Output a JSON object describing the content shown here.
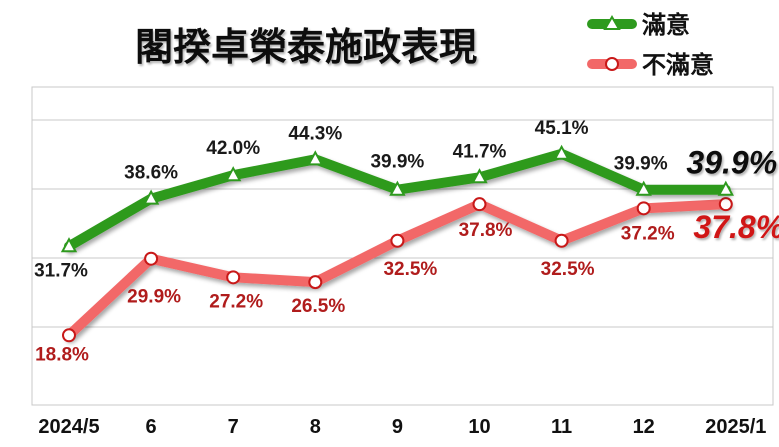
{
  "chart_data": {
    "type": "line",
    "title": "閣揆卓榮泰施政表現",
    "categories": [
      "2024/5",
      "6",
      "7",
      "8",
      "9",
      "10",
      "11",
      "12",
      "2025/1"
    ],
    "ylim": [
      0,
      60
    ],
    "grid": true,
    "legend_position": "top-right",
    "series": [
      {
        "name": "滿意",
        "color": "#2e9a1e",
        "label_color": "#1a1a1a",
        "marker": "triangle",
        "values": [
          31.7,
          38.6,
          42.0,
          44.3,
          39.9,
          41.7,
          45.1,
          39.9,
          39.9
        ],
        "labels": [
          "31.7%",
          "38.6%",
          "42.0%",
          "44.3%",
          "39.9%",
          "41.7%",
          "45.1%",
          "39.9%",
          "39.9%"
        ]
      },
      {
        "name": "不滿意",
        "color": "#f26868",
        "label_color": "#b01c1c",
        "marker": "circle",
        "values": [
          18.8,
          29.9,
          27.2,
          26.5,
          32.5,
          37.8,
          32.5,
          37.2,
          37.8
        ],
        "labels": [
          "18.8%",
          "29.9%",
          "27.2%",
          "26.5%",
          "32.5%",
          "37.8%",
          "32.5%",
          "37.2%",
          "37.8%"
        ]
      }
    ]
  }
}
